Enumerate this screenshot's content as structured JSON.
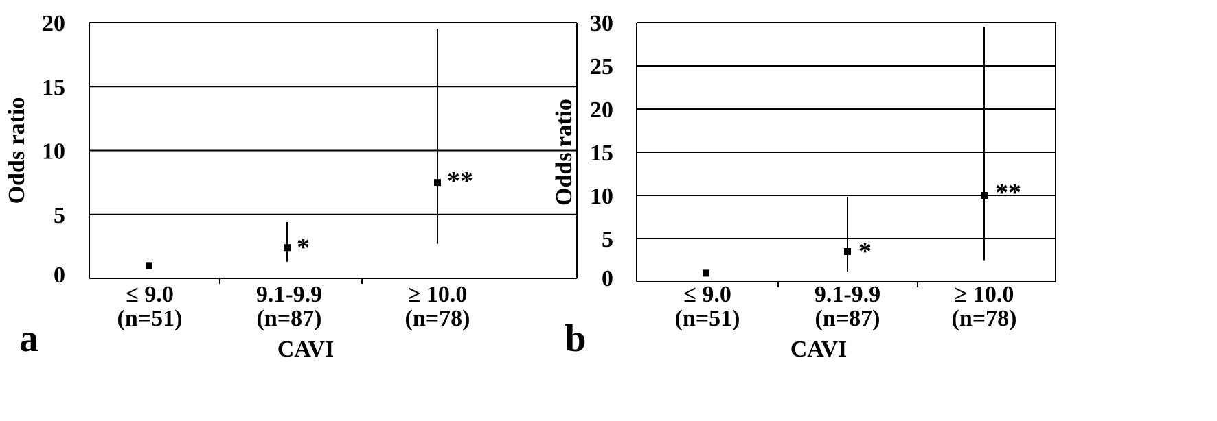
{
  "chart_data": [
    {
      "type": "scatter",
      "panel_label": "a",
      "xlabel": "CAVI",
      "ylabel": "Odds ratio",
      "ylim": [
        0,
        20
      ],
      "yticks": [
        0,
        5,
        10,
        15,
        20
      ],
      "grid": true,
      "categories": [
        {
          "line1": "≤ 9.0",
          "line2": "(n=51)"
        },
        {
          "line1": "9.1-9.9",
          "line2": "(n=87)"
        },
        {
          "line1": "≥ 10.0",
          "line2": "(n=78)"
        }
      ],
      "points": [
        {
          "or": 1.0,
          "ci_low": null,
          "ci_high": null,
          "sig": ""
        },
        {
          "or": 2.4,
          "ci_low": 1.3,
          "ci_high": 4.4,
          "sig": "*"
        },
        {
          "or": 7.5,
          "ci_low": 2.7,
          "ci_high": 19.5,
          "sig": "**"
        }
      ]
    },
    {
      "type": "scatter",
      "panel_label": "b",
      "xlabel": "CAVI",
      "ylabel": "Odds ratio",
      "ylim": [
        0,
        30
      ],
      "yticks": [
        0,
        5,
        10,
        15,
        20,
        25,
        30
      ],
      "grid": true,
      "categories": [
        {
          "line1": "≤ 9.0",
          "line2": "(n=51)"
        },
        {
          "line1": "9.1-9.9",
          "line2": "(n=87)"
        },
        {
          "line1": "≥ 10.0",
          "line2": "(n=78)"
        }
      ],
      "points": [
        {
          "or": 1.0,
          "ci_low": null,
          "ci_high": null,
          "sig": ""
        },
        {
          "or": 3.5,
          "ci_low": 1.2,
          "ci_high": 9.8,
          "sig": "*"
        },
        {
          "or": 10.0,
          "ci_low": 2.5,
          "ci_high": 29.5,
          "sig": "**"
        }
      ]
    }
  ]
}
